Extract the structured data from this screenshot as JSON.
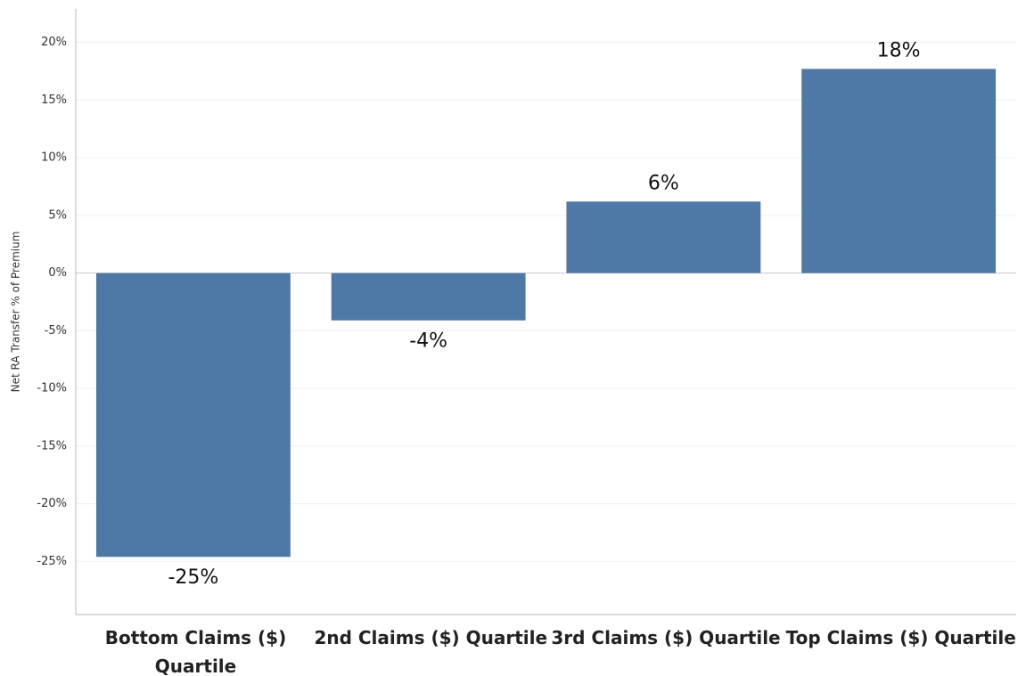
{
  "chart_data": {
    "type": "bar",
    "y_label": "Net RA Transfer % of Premium",
    "categories": [
      "Bottom Claims ($) Quartile",
      "2nd Claims ($) Quartile",
      "3rd Claims ($) Quartile",
      "Top Claims ($) Quartile"
    ],
    "values": [
      -24.6,
      -4.1,
      6.2,
      17.7
    ],
    "value_labels": [
      "-25%",
      "-4%",
      "6%",
      "18%"
    ],
    "color": "#4e79a7",
    "ylim": [
      -29.6,
      22.9
    ],
    "yticks": [
      {
        "value": 20,
        "label": "20%"
      },
      {
        "value": 15,
        "label": "15%"
      },
      {
        "value": 10,
        "label": "10%"
      },
      {
        "value": 5,
        "label": "5%"
      },
      {
        "value": 0,
        "label": "0%"
      },
      {
        "value": -5,
        "label": "-5%"
      },
      {
        "value": -10,
        "label": "-10%"
      },
      {
        "value": -15,
        "label": "-15%"
      },
      {
        "value": -20,
        "label": "-20%"
      },
      {
        "value": -25,
        "label": "-25%"
      }
    ],
    "grid": true
  }
}
